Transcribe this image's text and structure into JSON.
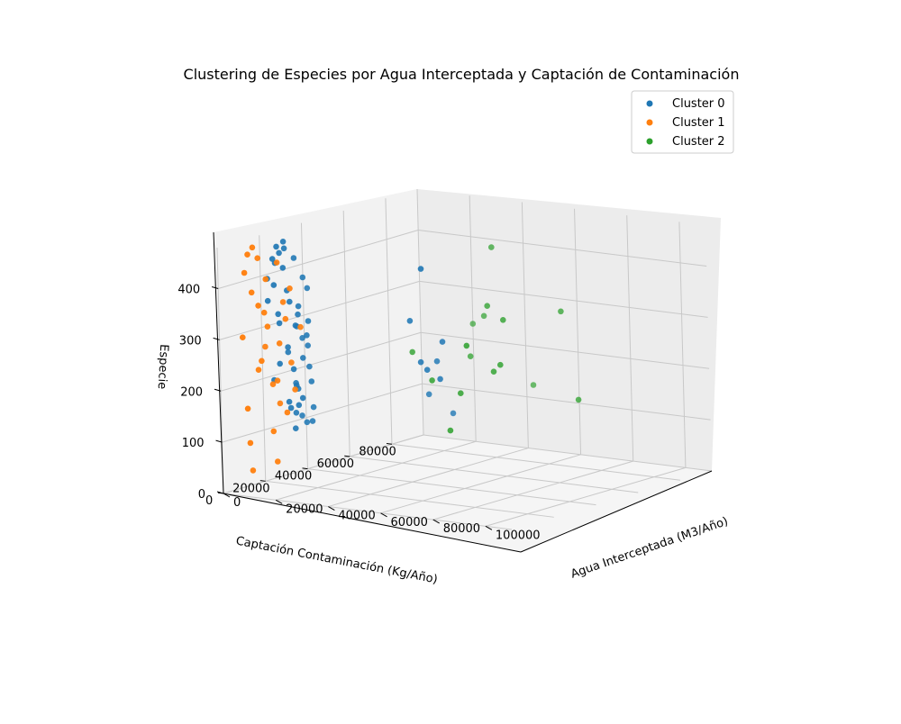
{
  "chart_data": {
    "type": "scatter",
    "projection": "3d",
    "title": "Clustering de Especies por Agua Interceptada y Captación de Contaminación",
    "xlabel": "Agua Interceptada (M3/Año)",
    "ylabel": "Captación Contaminación (Kg/Año)",
    "zlabel": "Especie",
    "xlim": [
      0,
      110000
    ],
    "ylim": [
      0,
      95000
    ],
    "zlim": [
      0,
      480
    ],
    "x_ticks": [
      0,
      20000,
      40000,
      60000,
      80000,
      100000
    ],
    "y_ticks": [
      0,
      20000,
      40000,
      60000,
      80000
    ],
    "z_ticks": [
      0,
      100,
      200,
      300,
      400
    ],
    "grid": true,
    "legend_position": "top-right",
    "series": [
      {
        "name": "Cluster 0",
        "color": "#1f77b4",
        "points": [
          [
            1500,
            24000,
            430
          ],
          [
            2500,
            26000,
            440
          ],
          [
            1200,
            25500,
            420
          ],
          [
            3000,
            27000,
            410
          ],
          [
            2000,
            29000,
            445
          ],
          [
            4000,
            31000,
            425
          ],
          [
            1800,
            21000,
            395
          ],
          [
            2200,
            23500,
            380
          ],
          [
            3500,
            28000,
            365
          ],
          [
            1000,
            22000,
            350
          ],
          [
            2800,
            30000,
            340
          ],
          [
            4500,
            32000,
            330
          ],
          [
            1600,
            26000,
            320
          ],
          [
            3200,
            24500,
            305
          ],
          [
            2400,
            33000,
            290
          ],
          [
            5000,
            35000,
            270
          ],
          [
            3800,
            27500,
            255
          ],
          [
            1400,
            30500,
            240
          ],
          [
            2600,
            25000,
            225
          ],
          [
            4200,
            29500,
            210
          ],
          [
            1900,
            23000,
            195
          ],
          [
            3300,
            31500,
            180
          ],
          [
            2100,
            34000,
            165
          ],
          [
            4600,
            26500,
            150
          ],
          [
            3600,
            28500,
            135
          ],
          [
            2300,
            32500,
            120
          ],
          [
            1700,
            36000,
            110
          ],
          [
            4800,
            37000,
            100
          ],
          [
            3100,
            24000,
            455
          ],
          [
            2700,
            27800,
            460
          ],
          [
            5200,
            33500,
            385
          ],
          [
            4400,
            36500,
            360
          ],
          [
            1300,
            35000,
            285
          ],
          [
            2900,
            38000,
            245
          ],
          [
            3700,
            37500,
            205
          ],
          [
            1100,
            34500,
            170
          ],
          [
            5400,
            30000,
            140
          ],
          [
            4100,
            38500,
            125
          ],
          [
            3400,
            33000,
            312
          ],
          [
            2500,
            36000,
            262
          ],
          [
            6000,
            35500,
            180
          ],
          [
            5800,
            32000,
            230
          ],
          [
            2000,
            37800,
            95
          ],
          [
            5600,
            28000,
            97
          ],
          [
            7000,
            30000,
            155
          ],
          [
            6500,
            34000,
            300
          ],
          [
            55000,
            28000,
            440
          ],
          [
            43000,
            37000,
            320
          ],
          [
            52000,
            41000,
            280
          ],
          [
            46000,
            38000,
            240
          ],
          [
            50000,
            36000,
            230
          ],
          [
            50000,
            42000,
            205
          ],
          [
            40000,
            53000,
            220
          ],
          [
            35000,
            55000,
            150
          ],
          [
            40000,
            60000,
            110
          ]
        ]
      },
      {
        "name": "Cluster 1",
        "color": "#ff7f0e",
        "points": [
          [
            2000,
            10000,
            420
          ],
          [
            5000,
            8000,
            460
          ],
          [
            3000,
            12000,
            380
          ],
          [
            6000,
            14000,
            340
          ],
          [
            4000,
            6000,
            300
          ],
          [
            7000,
            11000,
            250
          ],
          [
            2500,
            15000,
            225
          ],
          [
            8000,
            17000,
            205
          ],
          [
            4500,
            7000,
            160
          ],
          [
            9000,
            20000,
            140
          ],
          [
            3500,
            9000,
            90
          ],
          [
            6500,
            18000,
            45
          ],
          [
            1000,
            13000,
            30
          ],
          [
            5500,
            16000,
            310
          ],
          [
            7500,
            19000,
            275
          ],
          [
            3000,
            21000,
            190
          ],
          [
            8500,
            14000,
            110
          ],
          [
            9500,
            22000,
            380
          ],
          [
            4000,
            17500,
            400
          ],
          [
            6000,
            23000,
            350
          ],
          [
            2000,
            19000,
            265
          ],
          [
            7000,
            25000,
            230
          ],
          [
            5000,
            12500,
            355
          ],
          [
            8000,
            21500,
            320
          ],
          [
            9000,
            24000,
            180
          ],
          [
            3500,
            23500,
            150
          ],
          [
            6000,
            20500,
            430
          ],
          [
            1500,
            17000,
            440
          ],
          [
            10000,
            26000,
            300
          ],
          [
            4500,
            11000,
            470
          ]
        ]
      },
      {
        "name": "Cluster 2",
        "color": "#2ca02c",
        "points": [
          [
            40000,
            80000,
            410
          ],
          [
            60000,
            60000,
            305
          ],
          [
            20000,
            95000,
            230
          ],
          [
            70000,
            75000,
            310
          ],
          [
            30000,
            88000,
            260
          ],
          [
            50000,
            65000,
            320
          ],
          [
            45000,
            92000,
            130
          ],
          [
            55000,
            40000,
            110
          ],
          [
            35000,
            75000,
            200
          ],
          [
            80000,
            70000,
            150
          ],
          [
            60000,
            55000,
            210
          ],
          [
            62000,
            40000,
            280
          ],
          [
            25000,
            60000,
            220
          ],
          [
            65000,
            52000,
            230
          ],
          [
            42000,
            48000,
            190
          ],
          [
            52000,
            49000,
            170
          ]
        ]
      }
    ]
  }
}
